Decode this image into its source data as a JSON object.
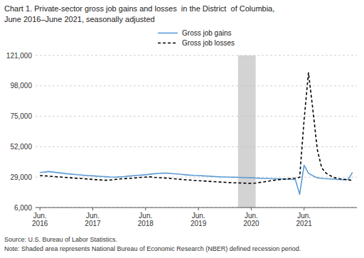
{
  "chart_data": {
    "type": "line",
    "title": "Chart 1. Private-sector gross job gains and losses  in the District  of Columbia,",
    "subtitle": "June 2016–June 2021, seasonally adjusted",
    "annotations": [
      "Source: U.S. Bureau of Labor Statistics.",
      "Note: Shaded area represents National Bureau of Economic Research (NBER) defined recession period."
    ],
    "categories": [
      "Jun.\n2016",
      null,
      null,
      null,
      null,
      null,
      null,
      null,
      null,
      null,
      null,
      null,
      "Jun.\n2017",
      null,
      null,
      null,
      null,
      null,
      null,
      null,
      null,
      null,
      null,
      null,
      "Jun.\n2018",
      null,
      null,
      null,
      null,
      null,
      null,
      null,
      null,
      null,
      null,
      null,
      "Jun.\n2019",
      null,
      null,
      null,
      null,
      null,
      null,
      null,
      null,
      null,
      null,
      null,
      "Jun.\n2020",
      null,
      null,
      null,
      null,
      null,
      null,
      null,
      null,
      null,
      null,
      null,
      "Jun.\n2021",
      null,
      null,
      null,
      null,
      null,
      null,
      null,
      null,
      null,
      null,
      null
    ],
    "series": [
      {
        "name": "Gross job gains",
        "color": "#5B9BD5",
        "line_style": "solid",
        "values": [
          32500,
          32800,
          33200,
          32800,
          32400,
          32000,
          31600,
          31300,
          31000,
          30700,
          30400,
          30200,
          30000,
          29700,
          29500,
          29300,
          29100,
          29000,
          29200,
          29400,
          29700,
          30000,
          30300,
          30500,
          30800,
          31200,
          31600,
          31800,
          32000,
          32000,
          31700,
          31400,
          31100,
          30800,
          30500,
          30300,
          30200,
          30000,
          29800,
          29600,
          29400,
          29200,
          29100,
          29000,
          28900,
          28800,
          28700,
          28600,
          28500,
          28300,
          28100,
          28000,
          27900,
          27800,
          27700,
          27600,
          27500,
          27400,
          27300,
          16000,
          38000,
          32000,
          30000,
          28500,
          28000,
          27800,
          27600,
          27400,
          27200,
          27000,
          27200,
          32500
        ]
      },
      {
        "name": "Gross job losses",
        "color": "#000000",
        "line_style": "dashed",
        "values": [
          30200,
          30000,
          29700,
          29500,
          29200,
          29000,
          28700,
          28500,
          28200,
          28000,
          27800,
          27500,
          27300,
          27000,
          26800,
          26600,
          26800,
          27200,
          27600,
          27800,
          28000,
          28200,
          28500,
          28800,
          29000,
          29200,
          28800,
          28600,
          28400,
          28200,
          27900,
          27600,
          27300,
          27000,
          26800,
          26500,
          26300,
          26100,
          25900,
          25700,
          25500,
          25300,
          25100,
          24900,
          24700,
          24600,
          24500,
          24400,
          24300,
          24500,
          25000,
          25500,
          26000,
          26500,
          27000,
          27300,
          27600,
          27900,
          28200,
          28800,
          72000,
          108000,
          80000,
          50000,
          36000,
          32000,
          30000,
          28500,
          27800,
          27400,
          27000,
          26500
        ]
      }
    ],
    "shaded_band": {
      "from": 45,
      "to": 49,
      "color": "#D3D3D3"
    },
    "ylim": [
      6000,
      121000
    ],
    "yticks": [
      {
        "value": 6000,
        "label": "6,000"
      },
      {
        "value": 29000,
        "label": "29,000"
      },
      {
        "value": 52000,
        "label": "52,000"
      },
      {
        "value": 75000,
        "label": "75,000"
      },
      {
        "value": 98000,
        "label": "98,000"
      },
      {
        "value": 121000,
        "label": "121,000"
      }
    ],
    "grid": true,
    "legend": "top"
  }
}
